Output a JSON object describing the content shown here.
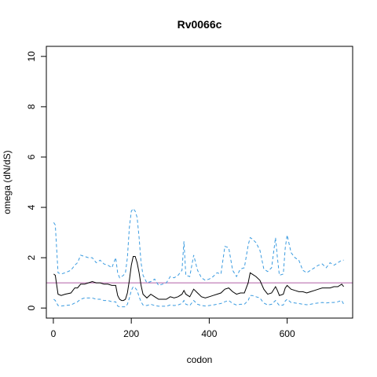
{
  "chart_data": {
    "type": "line",
    "title": "Rv0066c",
    "xlabel": "codon",
    "ylabel": "omega (dN/dS)",
    "xlim": [
      -18,
      768
    ],
    "ylim": [
      -0.4,
      10.4
    ],
    "x_ticks": [
      0,
      200,
      400,
      600
    ],
    "y_ticks": [
      0,
      2,
      4,
      6,
      8,
      10
    ],
    "reference_line": {
      "y": 1,
      "color": "#b05fa6"
    },
    "colors": {
      "mean": "#000000",
      "bounds": "#3a9be0"
    },
    "series": [
      {
        "style": "solid",
        "x": [
          1,
          5,
          12,
          20,
          30,
          45,
          55,
          62,
          70,
          80,
          90,
          100,
          110,
          120,
          130,
          140,
          150,
          160,
          165,
          170,
          175,
          180,
          185,
          190,
          195,
          200,
          205,
          210,
          215,
          220,
          225,
          230,
          240,
          250,
          260,
          270,
          280,
          290,
          300,
          310,
          320,
          330,
          335,
          340,
          350,
          360,
          370,
          380,
          390,
          400,
          410,
          420,
          430,
          440,
          450,
          460,
          470,
          480,
          490,
          500,
          505,
          510,
          520,
          530,
          540,
          550,
          560,
          570,
          575,
          580,
          590,
          595,
          600,
          610,
          620,
          630,
          640,
          650,
          660,
          670,
          680,
          690,
          700,
          710,
          720,
          730,
          740,
          745
        ],
        "y": [
          1.35,
          1.3,
          0.55,
          0.5,
          0.55,
          0.6,
          0.8,
          0.8,
          0.95,
          0.95,
          1.0,
          1.05,
          1.0,
          1.0,
          0.95,
          0.95,
          0.9,
          0.9,
          0.5,
          0.35,
          0.3,
          0.3,
          0.35,
          0.6,
          1.1,
          1.7,
          2.05,
          2.05,
          1.8,
          1.4,
          0.9,
          0.55,
          0.4,
          0.55,
          0.45,
          0.35,
          0.35,
          0.35,
          0.45,
          0.4,
          0.45,
          0.55,
          0.7,
          0.55,
          0.45,
          0.75,
          0.6,
          0.45,
          0.4,
          0.45,
          0.5,
          0.55,
          0.6,
          0.75,
          0.8,
          0.65,
          0.55,
          0.6,
          0.6,
          1.0,
          1.4,
          1.35,
          1.25,
          1.1,
          0.75,
          0.55,
          0.6,
          0.85,
          0.7,
          0.5,
          0.55,
          0.8,
          0.9,
          0.75,
          0.7,
          0.65,
          0.65,
          0.6,
          0.65,
          0.7,
          0.75,
          0.8,
          0.8,
          0.8,
          0.85,
          0.85,
          0.95,
          0.85
        ]
      },
      {
        "style": "dashed",
        "x": [
          1,
          5,
          12,
          20,
          30,
          45,
          55,
          62,
          70,
          80,
          90,
          100,
          110,
          120,
          130,
          140,
          150,
          160,
          165,
          170,
          175,
          180,
          185,
          190,
          195,
          200,
          205,
          210,
          215,
          220,
          225,
          230,
          240,
          250,
          260,
          270,
          280,
          290,
          300,
          310,
          320,
          330,
          335,
          340,
          350,
          360,
          370,
          380,
          390,
          400,
          410,
          420,
          430,
          440,
          450,
          460,
          470,
          480,
          490,
          500,
          505,
          510,
          520,
          530,
          540,
          550,
          560,
          570,
          575,
          580,
          590,
          595,
          600,
          610,
          620,
          630,
          640,
          650,
          660,
          670,
          680,
          690,
          700,
          710,
          720,
          730,
          740,
          745
        ],
        "y": [
          3.4,
          3.3,
          1.4,
          1.35,
          1.4,
          1.5,
          1.7,
          1.8,
          2.1,
          2.05,
          2.0,
          2.0,
          1.8,
          1.9,
          1.75,
          1.7,
          1.6,
          2.0,
          1.4,
          1.2,
          1.25,
          1.3,
          1.4,
          2.0,
          3.2,
          3.85,
          3.95,
          3.85,
          3.6,
          2.8,
          1.8,
          1.3,
          1.0,
          1.05,
          1.15,
          0.9,
          0.95,
          1.0,
          1.25,
          1.2,
          1.3,
          1.5,
          2.65,
          1.3,
          1.25,
          2.1,
          1.5,
          1.2,
          1.1,
          1.15,
          1.25,
          1.4,
          1.35,
          2.45,
          2.4,
          1.5,
          1.25,
          1.55,
          1.6,
          2.5,
          2.8,
          2.75,
          2.6,
          2.3,
          1.55,
          1.45,
          1.6,
          2.8,
          2.0,
          1.3,
          1.35,
          2.4,
          2.9,
          2.2,
          2.0,
          1.9,
          1.5,
          1.4,
          1.5,
          1.6,
          1.7,
          1.75,
          1.6,
          1.8,
          1.7,
          1.8,
          1.9,
          1.9
        ]
      },
      {
        "style": "dashed",
        "x": [
          1,
          5,
          12,
          20,
          30,
          45,
          55,
          62,
          70,
          80,
          90,
          100,
          110,
          120,
          130,
          140,
          150,
          160,
          165,
          170,
          175,
          180,
          185,
          190,
          195,
          200,
          205,
          210,
          215,
          220,
          225,
          230,
          240,
          250,
          260,
          270,
          280,
          290,
          300,
          310,
          320,
          330,
          335,
          340,
          350,
          360,
          370,
          380,
          390,
          400,
          410,
          420,
          430,
          440,
          450,
          460,
          470,
          480,
          490,
          500,
          505,
          510,
          520,
          530,
          540,
          550,
          560,
          570,
          575,
          580,
          590,
          595,
          600,
          610,
          620,
          630,
          640,
          650,
          660,
          670,
          680,
          690,
          700,
          710,
          720,
          730,
          740,
          745
        ],
        "y": [
          0.35,
          0.3,
          0.1,
          0.08,
          0.1,
          0.12,
          0.2,
          0.25,
          0.35,
          0.4,
          0.4,
          0.4,
          0.35,
          0.35,
          0.3,
          0.3,
          0.25,
          0.25,
          0.08,
          0.05,
          0.05,
          0.05,
          0.05,
          0.15,
          0.4,
          0.7,
          0.85,
          0.8,
          0.7,
          0.45,
          0.25,
          0.12,
          0.1,
          0.15,
          0.1,
          0.07,
          0.07,
          0.07,
          0.12,
          0.1,
          0.12,
          0.18,
          0.3,
          0.15,
          0.1,
          0.3,
          0.15,
          0.1,
          0.08,
          0.1,
          0.12,
          0.15,
          0.18,
          0.25,
          0.3,
          0.18,
          0.12,
          0.15,
          0.15,
          0.3,
          0.5,
          0.5,
          0.45,
          0.4,
          0.2,
          0.12,
          0.15,
          0.3,
          0.2,
          0.1,
          0.12,
          0.28,
          0.35,
          0.22,
          0.2,
          0.18,
          0.15,
          0.13,
          0.15,
          0.18,
          0.2,
          0.22,
          0.2,
          0.22,
          0.22,
          0.25,
          0.3,
          0.15
        ]
      }
    ]
  }
}
